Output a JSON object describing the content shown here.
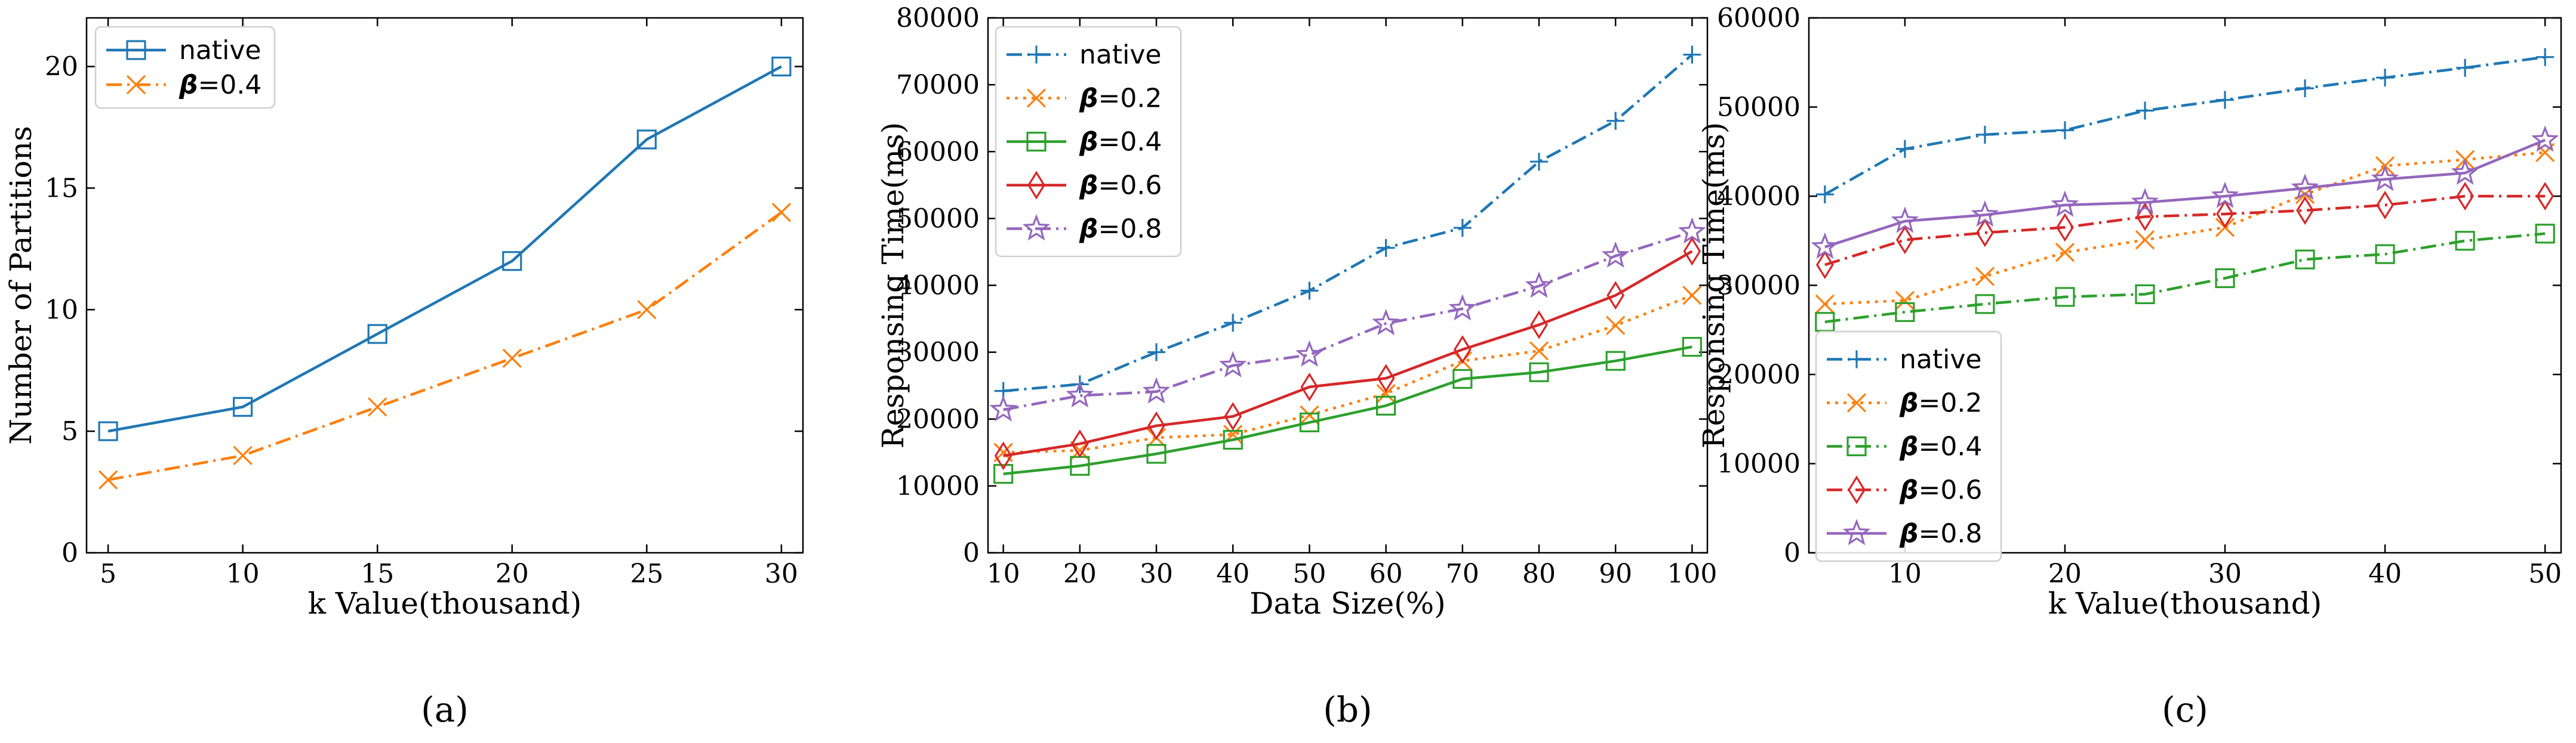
{
  "chart_data": [
    {
      "type": "line",
      "panel_label": "(a)",
      "xlabel": "k Value(thousand)",
      "ylabel": "Number of Partitions",
      "xlim": [
        4.2,
        30.8
      ],
      "ylim": [
        0,
        22
      ],
      "xticks": [
        5,
        10,
        15,
        20,
        25,
        30
      ],
      "yticks": [
        0,
        5,
        10,
        15,
        20
      ],
      "legend": "top-left",
      "x": [
        5,
        10,
        15,
        20,
        25,
        30
      ],
      "series": [
        {
          "name": "native",
          "label_prefix": "",
          "label_suffix": "",
          "color": "#1f77b4",
          "style": "solid",
          "marker": "square",
          "values": [
            5,
            6,
            9,
            12,
            17,
            20
          ]
        },
        {
          "name": "β=0.4",
          "label_prefix": "β",
          "label_suffix": "=0.4",
          "color": "#ff7f0e",
          "style": "dashdot",
          "marker": "x",
          "values": [
            3,
            4,
            6,
            8,
            10,
            14
          ]
        }
      ]
    },
    {
      "type": "line",
      "panel_label": "(b)",
      "xlabel": "Data Size(%)",
      "ylabel": "Responsing Time(ms)",
      "xlim": [
        8,
        102
      ],
      "ylim": [
        0,
        80000
      ],
      "xticks": [
        10,
        20,
        30,
        40,
        50,
        60,
        70,
        80,
        90,
        100
      ],
      "yticks": [
        0,
        10000,
        20000,
        30000,
        40000,
        50000,
        60000,
        70000,
        80000
      ],
      "legend": "top-left",
      "x": [
        10,
        20,
        30,
        40,
        50,
        60,
        70,
        80,
        90,
        100
      ],
      "series": [
        {
          "name": "native",
          "label_prefix": "",
          "label_suffix": "",
          "color": "#1f77b4",
          "style": "dashdot",
          "marker": "plus",
          "values": [
            24200,
            25200,
            30000,
            34400,
            39200,
            45600,
            48600,
            58500,
            64600,
            74500
          ]
        },
        {
          "name": "β=0.2",
          "label_prefix": "β",
          "label_suffix": "=0.2",
          "color": "#ff7f0e",
          "style": "dotted",
          "marker": "x",
          "values": [
            15000,
            15300,
            17200,
            17700,
            20600,
            23800,
            28700,
            30200,
            34000,
            38500
          ]
        },
        {
          "name": "β=0.4",
          "label_prefix": "β",
          "label_suffix": "=0.4",
          "color": "#2ca02c",
          "style": "solid",
          "marker": "square",
          "values": [
            11800,
            13000,
            14800,
            16900,
            19500,
            22000,
            26000,
            27000,
            28700,
            30800
          ]
        },
        {
          "name": "β=0.6",
          "label_prefix": "β",
          "label_suffix": "=0.6",
          "color": "#d62728",
          "style": "solid",
          "marker": "diamond",
          "values": [
            14500,
            16300,
            19000,
            20400,
            24800,
            26100,
            30400,
            34100,
            38500,
            45100
          ]
        },
        {
          "name": "β=0.8",
          "label_prefix": "β",
          "label_suffix": "=0.8",
          "color": "#9467bd",
          "style": "dashdot",
          "marker": "star",
          "values": [
            21400,
            23500,
            24100,
            28000,
            29600,
            34300,
            36500,
            39900,
            44400,
            48000
          ]
        }
      ]
    },
    {
      "type": "line",
      "panel_label": "(c)",
      "xlabel": "k Value(thousand)",
      "ylabel": "Responsing Time(ms)",
      "xlim": [
        4,
        51
      ],
      "ylim": [
        0,
        60000
      ],
      "xticks": [
        10,
        20,
        30,
        40,
        50
      ],
      "yticks": [
        0,
        10000,
        20000,
        30000,
        40000,
        50000,
        60000
      ],
      "legend": "lower-left",
      "x": [
        5,
        10,
        15,
        20,
        25,
        30,
        35,
        40,
        45,
        50
      ],
      "series": [
        {
          "name": "native",
          "label_prefix": "",
          "label_suffix": "",
          "color": "#1f77b4",
          "style": "dashdot",
          "marker": "plus",
          "values": [
            40200,
            45300,
            46900,
            47400,
            49600,
            50800,
            52100,
            53300,
            54400,
            55600
          ]
        },
        {
          "name": "β=0.2",
          "label_prefix": "β",
          "label_suffix": "=0.2",
          "color": "#ff7f0e",
          "style": "dotted",
          "marker": "x",
          "values": [
            27900,
            28300,
            31000,
            33700,
            35100,
            36500,
            40200,
            43400,
            44100,
            44900
          ]
        },
        {
          "name": "β=0.4",
          "label_prefix": "β",
          "label_suffix": "=0.4",
          "color": "#2ca02c",
          "style": "dashdot",
          "marker": "square",
          "values": [
            25900,
            27000,
            27900,
            28700,
            29000,
            30800,
            32900,
            33500,
            35000,
            35800
          ]
        },
        {
          "name": "β=0.6",
          "label_prefix": "β",
          "label_suffix": "=0.6",
          "color": "#d62728",
          "style": "dashdot",
          "marker": "diamond",
          "values": [
            32300,
            35100,
            35900,
            36500,
            37700,
            38000,
            38400,
            39000,
            40000,
            40000
          ]
        },
        {
          "name": "β=0.8",
          "label_prefix": "β",
          "label_suffix": "=0.8",
          "color": "#9467bd",
          "style": "solid",
          "marker": "star",
          "values": [
            34300,
            37200,
            37900,
            39000,
            39300,
            40000,
            40900,
            41900,
            42600,
            46300
          ]
        }
      ]
    }
  ]
}
